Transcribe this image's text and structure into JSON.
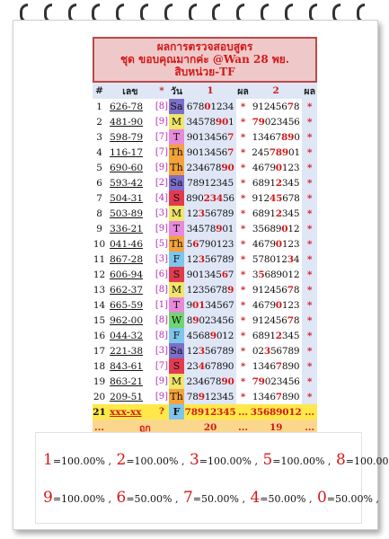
{
  "header": {
    "line1": "ผลการตรวจสอบสูตร",
    "line2": "ชุด ขอบคุณมากค่ะ @Wan 28 พย.",
    "line3": "สิบหน่วย-TF"
  },
  "columns": {
    "num": "#",
    "code": "เลข",
    "star": "*",
    "day": "วัน",
    "a": "1",
    "res1": "ผล",
    "b": "2",
    "res2": "ผล"
  },
  "rows": [
    {
      "n": "1",
      "code": "626-78",
      "bk": "[8]",
      "day": "Sa",
      "a": [
        "678",
        "0",
        "1234"
      ],
      "s1": "*",
      "b": [
        "912456",
        "7",
        "8"
      ],
      "s2": "*"
    },
    {
      "n": "2",
      "code": "481-90",
      "bk": "[9]",
      "day": "M",
      "a": [
        "34578",
        "90",
        "1"
      ],
      "s1": "*",
      "b": [
        "",
        "79",
        "023456"
      ],
      "s2": "*"
    },
    {
      "n": "3",
      "code": "598-79",
      "bk": "[7]",
      "day": "T",
      "a": [
        "9013456",
        "7",
        ""
      ],
      "s1": "*",
      "b": [
        "13467",
        "89",
        "0"
      ],
      "s2": "*"
    },
    {
      "n": "4",
      "code": "116-17",
      "bk": "[7]",
      "day": "Th",
      "a": [
        "9013456",
        "7",
        ""
      ],
      "s1": "*",
      "b": [
        "245",
        "789",
        "01"
      ],
      "s2": "*"
    },
    {
      "n": "5",
      "code": "690-60",
      "bk": "[9]",
      "day": "Th",
      "a": [
        "234678",
        "90",
        ""
      ],
      "s1": "*",
      "b": [
        "4679",
        "0",
        "123"
      ],
      "s2": "*"
    },
    {
      "n": "6",
      "code": "593-42",
      "bk": "[2]",
      "day": "Sa",
      "a": [
        "78912345",
        "",
        ""
      ],
      "s1": "*",
      "b": [
        "6891",
        "2",
        "345"
      ],
      "s2": "*"
    },
    {
      "n": "7",
      "code": "504-31",
      "bk": "[4]",
      "day": "S",
      "a": [
        "890",
        "234",
        "56"
      ],
      "s1": "*",
      "b": [
        "912",
        "45",
        "678"
      ],
      "s2": "*"
    },
    {
      "n": "8",
      "code": "503-89",
      "bk": "[3]",
      "day": "M",
      "a": [
        "12",
        "3",
        "56789"
      ],
      "s1": "*",
      "b": [
        "6891",
        "2",
        "345"
      ],
      "s2": "*"
    },
    {
      "n": "9",
      "code": "336-21",
      "bk": "[9]",
      "day": "T",
      "a": [
        "34578",
        "9",
        "01"
      ],
      "s1": "*",
      "b": [
        "35689",
        "0",
        "12"
      ],
      "s2": "*"
    },
    {
      "n": "10",
      "code": "041-46",
      "bk": "[5]",
      "day": "Th",
      "a": [
        "5",
        "6",
        "790123"
      ],
      "s1": "*",
      "b": [
        "4679",
        "0",
        "123"
      ],
      "s2": "*"
    },
    {
      "n": "11",
      "code": "867-28",
      "bk": "[3]",
      "day": "F",
      "a": [
        "12",
        "3",
        "56789"
      ],
      "s1": "*",
      "b": [
        "578012",
        "3",
        "4"
      ],
      "s2": "*"
    },
    {
      "n": "12",
      "code": "606-94",
      "bk": "[6]",
      "day": "S",
      "a": [
        "901345",
        "6",
        "7"
      ],
      "s1": "*",
      "b": [
        "3",
        "5",
        "689012"
      ],
      "s2": "*"
    },
    {
      "n": "13",
      "code": "662-37",
      "bk": "[8]",
      "day": "M",
      "a": [
        "1235678",
        "9",
        ""
      ],
      "s1": "*",
      "b": [
        "912456",
        "7",
        "8"
      ],
      "s2": "*"
    },
    {
      "n": "14",
      "code": "665-59",
      "bk": "[1]",
      "day": "T",
      "a": [
        "9",
        "01",
        "34567"
      ],
      "s1": "*",
      "b": [
        "4679",
        "0",
        "123"
      ],
      "s2": "*"
    },
    {
      "n": "15",
      "code": "962-00",
      "bk": "[8]",
      "day": "W",
      "a": [
        "8",
        "9",
        "023456"
      ],
      "s1": "*",
      "b": [
        "912456",
        "7",
        "8"
      ],
      "s2": "*"
    },
    {
      "n": "16",
      "code": "044-32",
      "bk": "[8]",
      "day": "F",
      "a": [
        "4568",
        "9",
        "012"
      ],
      "s1": "*",
      "b": [
        "6891",
        "2",
        "345"
      ],
      "s2": "*"
    },
    {
      "n": "17",
      "code": "221-38",
      "bk": "[3]",
      "day": "Sa",
      "a": [
        "12",
        "3",
        "56789"
      ],
      "s1": "*",
      "b": [
        "02",
        "3",
        "56789"
      ],
      "s2": "*"
    },
    {
      "n": "18",
      "code": "843-61",
      "bk": "[7]",
      "day": "S",
      "a": [
        "23",
        "4",
        "67890"
      ],
      "s1": "*",
      "b": [
        "1346",
        "7",
        "890"
      ],
      "s2": "*"
    },
    {
      "n": "19",
      "code": "863-21",
      "bk": "[9]",
      "day": "M",
      "a": [
        "234678",
        "90",
        ""
      ],
      "s1": "*",
      "b": [
        "",
        "79",
        "023456"
      ],
      "s2": "*"
    },
    {
      "n": "20",
      "code": "209-51",
      "bk": "[9]",
      "day": "Th",
      "a": [
        "78",
        "9",
        "12345"
      ],
      "s1": "*",
      "b": [
        "1346",
        "7",
        "890"
      ],
      "s2": "*"
    }
  ],
  "row21": {
    "n": "21",
    "code": "xxx-xx",
    "bk": "?",
    "day": "F",
    "a": "78912345",
    "s1": "...",
    "b": "35689012",
    "s2": "..."
  },
  "footer": {
    "dots": "...",
    "label": "ถูก",
    "count1": "20",
    "sep": "...",
    "count2": "19",
    "tail": "..."
  },
  "stats": {
    "line1": [
      {
        "d": "1",
        "t": "=100.00% ,"
      },
      {
        "d": "2",
        "t": "=100.00% ,"
      },
      {
        "d": "3",
        "t": "=100.00% ,"
      },
      {
        "d": "5",
        "t": "=100.00% ,"
      },
      {
        "d": "8",
        "t": "=100.00% ,"
      }
    ],
    "line2": [
      {
        "d": "9",
        "t": "=100.00% ,"
      },
      {
        "d": "6",
        "t": "=50.00% ,"
      },
      {
        "d": "7",
        "t": "=50.00% ,"
      },
      {
        "d": "4",
        "t": "=50.00% ,"
      },
      {
        "d": "0",
        "t": "=50.00% ,"
      }
    ]
  },
  "colors": {
    "red": "#d31818",
    "title_bg": "#efc9c9",
    "row_blue": "#dfe6f6",
    "highlight_yellow": "#ffe94a",
    "footer_orange": "#fbd78e"
  }
}
